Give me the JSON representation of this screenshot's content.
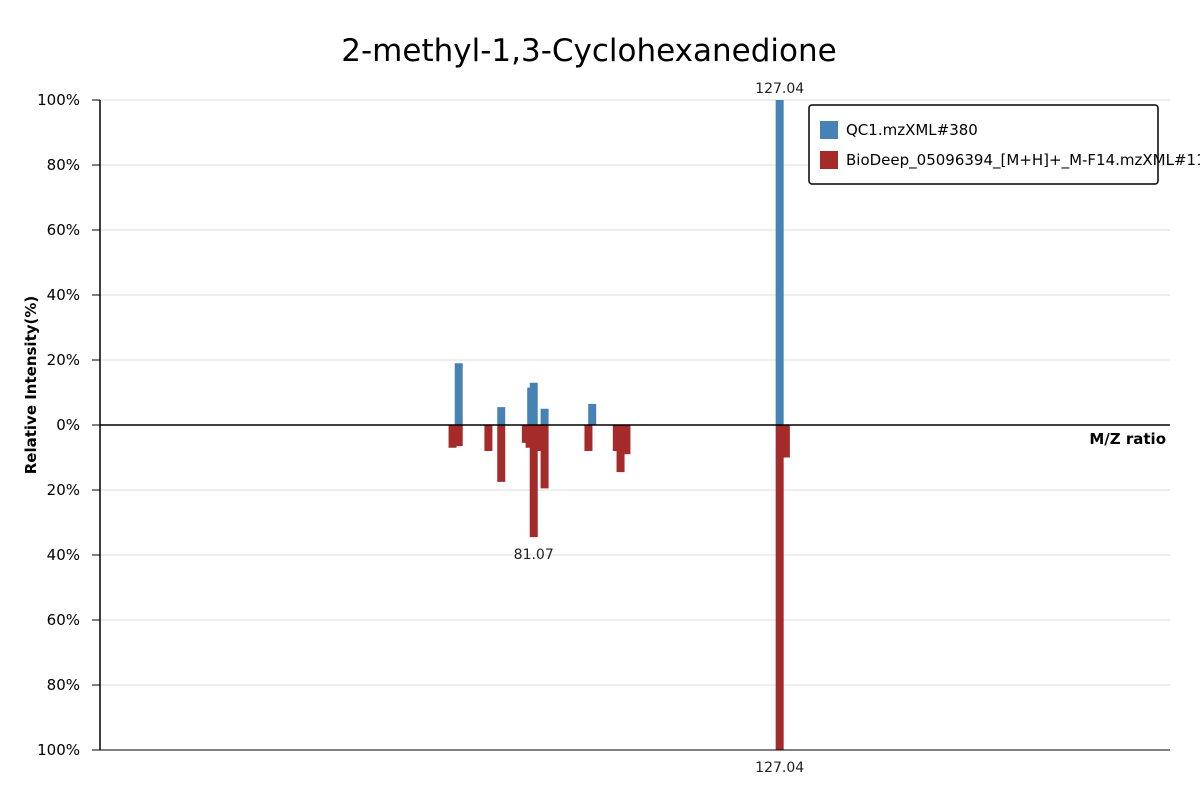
{
  "chart_data": {
    "type": "bar",
    "title": "2-methyl-1,3-Cyclohexanedione",
    "xlabel": "M/Z ratio",
    "ylabel": "Relative Intensity(%)",
    "y_ticks_top": [
      "100%",
      "80%",
      "60%",
      "40%",
      "20%",
      "0%"
    ],
    "y_ticks_bottom": [
      "20%",
      "40%",
      "60%",
      "80%",
      "100%"
    ],
    "ylim": [
      -100,
      100
    ],
    "xlim": [
      0,
      200
    ],
    "grid": true,
    "legend_position": "top-right",
    "colors": {
      "top": "#4682b4",
      "bottom": "#a52a2a"
    },
    "series": [
      {
        "name": "QC1.mzXML#380",
        "direction": "up",
        "peaks": [
          {
            "mz": 67.05,
            "intensity": 19
          },
          {
            "mz": 75.0,
            "intensity": 5.5
          },
          {
            "mz": 80.6,
            "intensity": 11.5
          },
          {
            "mz": 81.07,
            "intensity": 13
          },
          {
            "mz": 83.1,
            "intensity": 5
          },
          {
            "mz": 92.0,
            "intensity": 6.5
          },
          {
            "mz": 127.04,
            "intensity": 100
          }
        ],
        "labels": [
          {
            "mz": 127.04,
            "text": "127.04"
          }
        ]
      },
      {
        "name": "BioDeep_05096394_[M+H]+_M-F14.mzXML#11",
        "direction": "down",
        "peaks": [
          {
            "mz": 65.9,
            "intensity": 7
          },
          {
            "mz": 67.05,
            "intensity": 6.5
          },
          {
            "mz": 72.6,
            "intensity": 8
          },
          {
            "mz": 75.0,
            "intensity": 17.5
          },
          {
            "mz": 79.6,
            "intensity": 5.5
          },
          {
            "mz": 80.3,
            "intensity": 7
          },
          {
            "mz": 81.07,
            "intensity": 34.5
          },
          {
            "mz": 82.1,
            "intensity": 8
          },
          {
            "mz": 83.1,
            "intensity": 19.5
          },
          {
            "mz": 91.3,
            "intensity": 8
          },
          {
            "mz": 96.6,
            "intensity": 8
          },
          {
            "mz": 97.3,
            "intensity": 14.5
          },
          {
            "mz": 98.4,
            "intensity": 9
          },
          {
            "mz": 127.04,
            "intensity": 100
          },
          {
            "mz": 128.2,
            "intensity": 10
          }
        ],
        "labels": [
          {
            "mz": 81.07,
            "text": "81.07"
          },
          {
            "mz": 127.04,
            "text": "127.04"
          }
        ]
      }
    ]
  }
}
